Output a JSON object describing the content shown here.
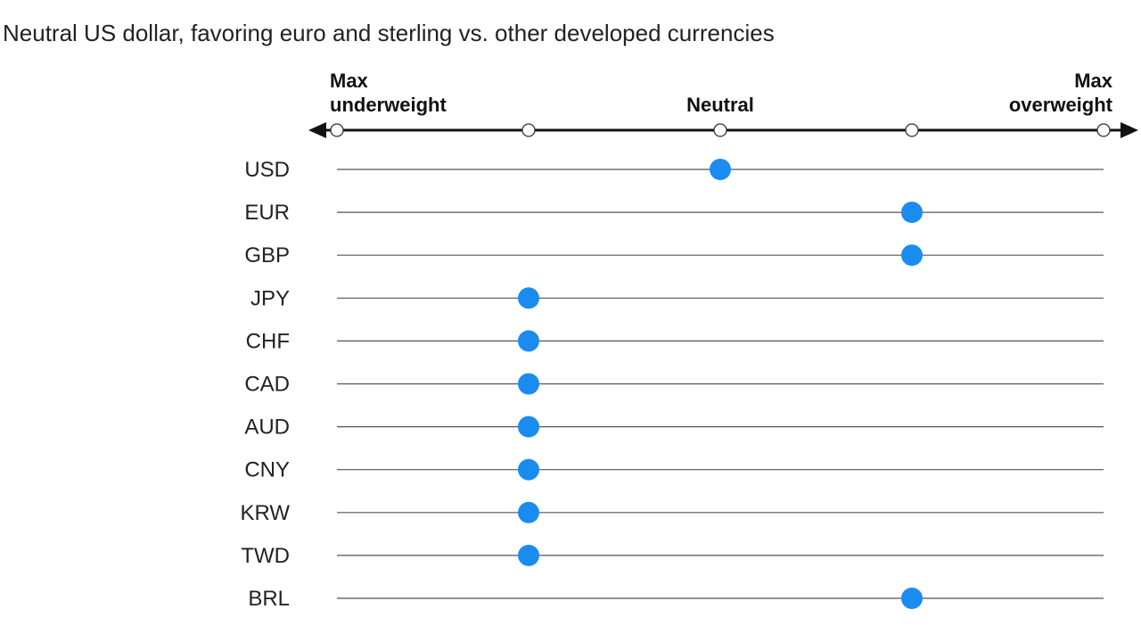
{
  "title": "Neutral US dollar, favoring euro and sterling vs. other developed currencies",
  "colors": {
    "marker": "#1a8cf0",
    "axis": "#111111",
    "row_line": "#555555"
  },
  "chart_data": {
    "type": "scatter",
    "scale": {
      "min": -2,
      "max": 2,
      "tick_values": [
        -2,
        -1,
        0,
        1,
        2
      ],
      "labels": [
        {
          "value": -2,
          "lines": [
            "Max",
            "underweight"
          ],
          "align": "start"
        },
        {
          "value": 0,
          "lines": [
            "Neutral"
          ],
          "align": "middle"
        },
        {
          "value": 2,
          "lines": [
            "Max",
            "overweight"
          ],
          "align": "end"
        }
      ]
    },
    "categories": [
      "USD",
      "EUR",
      "GBP",
      "JPY",
      "CHF",
      "CAD",
      "AUD",
      "CNY",
      "KRW",
      "TWD",
      "BRL"
    ],
    "values": [
      0,
      1,
      1,
      -1,
      -1,
      -1,
      -1,
      -1,
      -1,
      -1,
      1
    ]
  }
}
